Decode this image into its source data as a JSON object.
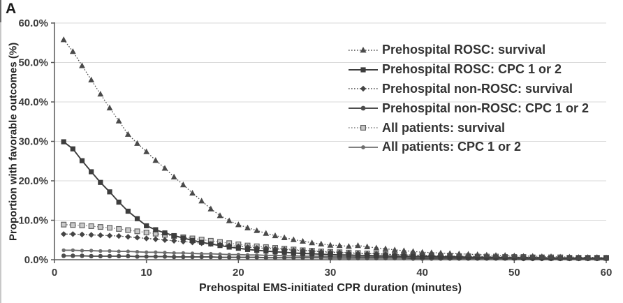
{
  "panel_label": "A",
  "colors": {
    "grid": "#dadada",
    "axis": "#595959",
    "tick_text": "#3d3d3d",
    "title_text": "#262626",
    "dark_series": "#4d4d4d",
    "gray_series": "#7d7d7d"
  },
  "chart_data": {
    "type": "line",
    "title": "",
    "xlabel": "Prehospital EMS-initiated CPR duration (minutes)",
    "ylabel": "Proportion with favorable outcomes (%)",
    "x_range": [
      0,
      60
    ],
    "y_range_percent": [
      0,
      60
    ],
    "x_ticks": [
      0,
      10,
      20,
      30,
      40,
      50,
      60
    ],
    "y_ticks": [
      "0.0%",
      "10.0%",
      "20.0%",
      "30.0%",
      "40.0%",
      "50.0%",
      "60.0%"
    ],
    "grid": "horizontal",
    "legend_position": "top-right-inside",
    "x_start_minute": 1,
    "x_step_minutes": 1,
    "series": [
      {
        "name": "Prehospital ROSC: survival",
        "marker": "triangle",
        "line": "dotted",
        "color": "#4a4a4a",
        "values": [
          55.8,
          52.8,
          49.2,
          45.6,
          42.0,
          38.5,
          35.2,
          31.8,
          29.5,
          27.4,
          25.2,
          23.2,
          21.0,
          19.0,
          16.9,
          14.9,
          12.9,
          11.2,
          9.9,
          8.9,
          8.1,
          7.4,
          6.7,
          6.1,
          5.6,
          5.1,
          4.7,
          4.3,
          4.0,
          3.7,
          3.6,
          3.4,
          3.6,
          3.3,
          3.0,
          2.8,
          2.5,
          2.3,
          2.1,
          1.9,
          1.8,
          1.7,
          1.6,
          1.5,
          1.4,
          1.3,
          1.2,
          1.1,
          1.1,
          1.0,
          0.9,
          0.9,
          0.8,
          0.8,
          0.7,
          0.7,
          0.6,
          0.6,
          0.6,
          0.5
        ]
      },
      {
        "name": "Prehospital ROSC: CPC 1 or 2",
        "marker": "square",
        "line": "solid",
        "color": "#3d3d3d",
        "values": [
          29.9,
          28.1,
          25.1,
          22.3,
          19.6,
          17.2,
          14.6,
          12.3,
          10.4,
          8.6,
          7.6,
          6.8,
          6.1,
          5.5,
          4.9,
          4.4,
          4.0,
          3.6,
          3.2,
          2.9,
          2.6,
          2.4,
          2.2,
          2.0,
          1.9,
          1.7,
          1.6,
          1.5,
          1.4,
          1.3,
          1.2,
          1.2,
          1.1,
          1.1,
          1.0,
          1.0,
          0.9,
          0.9,
          0.8,
          0.8,
          0.8,
          0.7,
          0.7,
          0.7,
          0.6,
          0.6,
          0.6,
          0.6,
          0.5,
          0.5,
          0.5,
          0.5,
          0.5,
          0.4,
          0.4,
          0.4,
          0.4,
          0.4,
          0.4,
          0.4
        ]
      },
      {
        "name": "Prehospital non-ROSC: survival",
        "marker": "diamond",
        "line": "dotted",
        "color": "#454545",
        "values": [
          6.5,
          6.5,
          6.4,
          6.3,
          6.2,
          6.1,
          6.0,
          5.8,
          5.6,
          5.4,
          5.2,
          5.0,
          4.8,
          4.6,
          4.4,
          4.2,
          4.0,
          3.8,
          3.6,
          3.4,
          3.2,
          3.0,
          2.9,
          2.7,
          2.6,
          2.4,
          2.3,
          2.2,
          2.0,
          1.9,
          1.8,
          1.7,
          1.6,
          1.5,
          1.5,
          1.4,
          1.3,
          1.2,
          1.2,
          1.1,
          1.0,
          1.0,
          0.9,
          0.9,
          0.8,
          0.8,
          0.7,
          0.7,
          0.7,
          0.6,
          0.6,
          0.6,
          0.5,
          0.5,
          0.5,
          0.5,
          0.4,
          0.4,
          0.4,
          0.4
        ]
      },
      {
        "name": "Prehospital non-ROSC: CPC 1 or 2",
        "marker": "circle",
        "line": "solid",
        "color": "#4d4d4d",
        "values": [
          1.0,
          1.0,
          1.0,
          0.9,
          0.9,
          0.9,
          0.9,
          0.9,
          0.8,
          0.8,
          0.8,
          0.8,
          0.7,
          0.7,
          0.7,
          0.7,
          0.7,
          0.6,
          0.6,
          0.6,
          0.6,
          0.6,
          0.5,
          0.5,
          0.5,
          0.5,
          0.5,
          0.5,
          0.5,
          0.4,
          0.4,
          0.4,
          0.4,
          0.4,
          0.4,
          0.4,
          0.4,
          0.4,
          0.3,
          0.3,
          0.3,
          0.3,
          0.3,
          0.3,
          0.3,
          0.3,
          0.3,
          0.3,
          0.3,
          0.3,
          0.2,
          0.2,
          0.2,
          0.2,
          0.2,
          0.2,
          0.2,
          0.2,
          0.2,
          0.2
        ]
      },
      {
        "name": "All patients: survival",
        "marker": "open-square",
        "line": "dotted",
        "color": "#808080",
        "values": [
          8.9,
          8.8,
          8.7,
          8.5,
          8.3,
          8.1,
          7.8,
          7.5,
          7.2,
          6.9,
          6.6,
          6.3,
          6.0,
          5.7,
          5.4,
          5.1,
          4.8,
          4.5,
          4.2,
          3.9,
          3.6,
          3.4,
          3.2,
          3.0,
          2.8,
          2.6,
          2.4,
          2.3,
          2.1,
          2.0,
          1.9,
          1.8,
          1.7,
          1.6,
          1.5,
          1.4,
          1.3,
          1.3,
          1.2,
          1.1,
          1.1,
          1.0,
          1.0,
          0.9,
          0.9,
          0.8,
          0.8,
          0.8,
          0.7,
          0.7,
          0.7,
          0.6,
          0.6,
          0.6,
          0.6,
          0.5,
          0.5,
          0.5,
          0.5,
          0.5
        ]
      },
      {
        "name": "All patients: CPC 1 or 2",
        "marker": "circle-small",
        "line": "solid",
        "color": "#6e6e6e",
        "values": [
          2.4,
          2.4,
          2.3,
          2.3,
          2.2,
          2.2,
          2.1,
          2.1,
          2.0,
          1.9,
          1.9,
          1.8,
          1.7,
          1.7,
          1.6,
          1.5,
          1.5,
          1.4,
          1.3,
          1.3,
          1.2,
          1.2,
          1.1,
          1.1,
          1.0,
          1.0,
          0.9,
          0.9,
          0.9,
          0.8,
          0.8,
          0.8,
          0.7,
          0.7,
          0.7,
          0.7,
          0.6,
          0.6,
          0.6,
          0.6,
          0.5,
          0.5,
          0.5,
          0.5,
          0.5,
          0.4,
          0.4,
          0.4,
          0.4,
          0.4,
          0.4,
          0.4,
          0.3,
          0.3,
          0.3,
          0.3,
          0.3,
          0.3,
          0.3,
          0.3
        ]
      }
    ]
  }
}
